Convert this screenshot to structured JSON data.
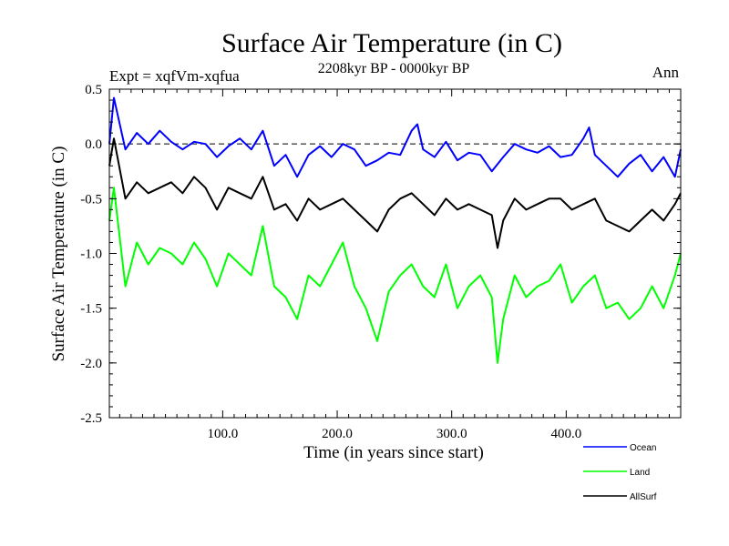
{
  "header": {
    "title": "Surface Air Temperature (in C)",
    "subtitle": "2208kyr BP - 0000kyr BP",
    "expt": "Expt = xqfVm-xqfua",
    "season": "Ann"
  },
  "chart_data": {
    "type": "line",
    "title": "Surface Air Temperature (in C)",
    "subtitle": "2208kyr BP - 0000kyr BP",
    "xlabel": "Time (in years since start)",
    "ylabel": "Surface Air Temperature (in C)",
    "xlim": [
      1,
      500
    ],
    "ylim": [
      -2.5,
      0.5
    ],
    "xticks": [
      100,
      200,
      300,
      400
    ],
    "xtick_labels": [
      "100.0",
      "200.0",
      "300.0",
      "400.0"
    ],
    "yticks": [
      -2.5,
      -2.0,
      -1.5,
      -1.0,
      -0.5,
      0.0,
      0.5
    ],
    "ytick_labels": [
      "-2.5",
      "-2.0",
      "-1.5",
      "-1.0",
      "-0.5",
      "0.0",
      "0.5"
    ],
    "reference_line": 0.0,
    "series": [
      {
        "name": "Ocean",
        "color": "#0000ff",
        "x": [
          1,
          5,
          15,
          25,
          35,
          45,
          55,
          65,
          75,
          85,
          95,
          105,
          115,
          125,
          135,
          145,
          155,
          165,
          175,
          185,
          195,
          205,
          215,
          225,
          235,
          245,
          255,
          265,
          270,
          275,
          285,
          295,
          305,
          315,
          325,
          335,
          345,
          355,
          365,
          375,
          385,
          395,
          405,
          415,
          420,
          425,
          435,
          445,
          455,
          465,
          475,
          485,
          495,
          500
        ],
        "values": [
          0.0,
          0.42,
          -0.05,
          0.1,
          0.0,
          0.12,
          0.02,
          -0.05,
          0.02,
          0.0,
          -0.12,
          -0.02,
          0.05,
          -0.05,
          0.12,
          -0.2,
          -0.1,
          -0.3,
          -0.1,
          -0.02,
          -0.12,
          0.0,
          -0.05,
          -0.2,
          -0.15,
          -0.08,
          -0.1,
          0.12,
          0.18,
          -0.05,
          -0.12,
          0.02,
          -0.15,
          -0.08,
          -0.1,
          -0.25,
          -0.12,
          0.0,
          -0.05,
          -0.08,
          -0.02,
          -0.12,
          -0.1,
          0.05,
          0.15,
          -0.1,
          -0.2,
          -0.3,
          -0.18,
          -0.1,
          -0.25,
          -0.12,
          -0.3,
          -0.05
        ]
      },
      {
        "name": "Land",
        "color": "#00ff00",
        "x": [
          1,
          5,
          15,
          25,
          35,
          45,
          55,
          65,
          75,
          85,
          95,
          105,
          115,
          125,
          135,
          145,
          155,
          165,
          175,
          185,
          195,
          205,
          215,
          225,
          235,
          245,
          255,
          265,
          275,
          285,
          295,
          305,
          315,
          325,
          335,
          340,
          345,
          355,
          365,
          375,
          385,
          395,
          405,
          415,
          425,
          435,
          445,
          455,
          465,
          475,
          485,
          495,
          500
        ],
        "values": [
          -0.7,
          -0.4,
          -1.3,
          -0.9,
          -1.1,
          -0.95,
          -1.0,
          -1.1,
          -0.9,
          -1.05,
          -1.3,
          -1.0,
          -1.1,
          -1.2,
          -0.75,
          -1.3,
          -1.4,
          -1.6,
          -1.2,
          -1.3,
          -1.1,
          -0.9,
          -1.3,
          -1.5,
          -1.8,
          -1.35,
          -1.2,
          -1.1,
          -1.3,
          -1.4,
          -1.1,
          -1.5,
          -1.3,
          -1.2,
          -1.4,
          -2.0,
          -1.6,
          -1.2,
          -1.4,
          -1.3,
          -1.25,
          -1.1,
          -1.45,
          -1.3,
          -1.2,
          -1.5,
          -1.45,
          -1.6,
          -1.5,
          -1.3,
          -1.5,
          -1.2,
          -1.0
        ]
      },
      {
        "name": "AllSurf",
        "color": "#000000",
        "x": [
          1,
          5,
          15,
          25,
          35,
          45,
          55,
          65,
          75,
          85,
          95,
          105,
          115,
          125,
          135,
          145,
          155,
          165,
          175,
          185,
          195,
          205,
          215,
          225,
          235,
          245,
          255,
          265,
          275,
          285,
          295,
          305,
          315,
          325,
          335,
          340,
          345,
          355,
          365,
          375,
          385,
          395,
          405,
          415,
          425,
          435,
          445,
          455,
          465,
          475,
          485,
          495,
          500
        ],
        "values": [
          -0.2,
          0.05,
          -0.5,
          -0.35,
          -0.45,
          -0.4,
          -0.35,
          -0.45,
          -0.3,
          -0.4,
          -0.6,
          -0.4,
          -0.45,
          -0.5,
          -0.3,
          -0.6,
          -0.55,
          -0.7,
          -0.5,
          -0.6,
          -0.55,
          -0.5,
          -0.6,
          -0.7,
          -0.8,
          -0.6,
          -0.5,
          -0.45,
          -0.55,
          -0.65,
          -0.5,
          -0.6,
          -0.55,
          -0.6,
          -0.65,
          -0.95,
          -0.7,
          -0.5,
          -0.6,
          -0.55,
          -0.5,
          -0.5,
          -0.6,
          -0.55,
          -0.5,
          -0.7,
          -0.75,
          -0.8,
          -0.7,
          -0.6,
          -0.7,
          -0.55,
          -0.45
        ]
      }
    ],
    "legend": [
      "Ocean",
      "Land",
      "AllSurf"
    ],
    "legend_placement": "bottom-right"
  }
}
